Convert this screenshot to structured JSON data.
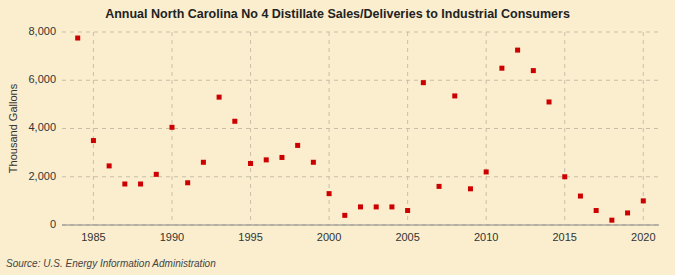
{
  "chart_data": {
    "type": "scatter",
    "title": "Annual North Carolina No 4 Distillate Sales/Deliveries to Industrial Consumers",
    "ylabel": "Thousand Gallons",
    "source": "Source: U.S. Energy Information Administration",
    "x": [
      1984,
      1985,
      1986,
      1987,
      1988,
      1989,
      1990,
      1991,
      1992,
      1993,
      1994,
      1995,
      1996,
      1997,
      1998,
      1999,
      2000,
      2001,
      2002,
      2003,
      2004,
      2005,
      2006,
      2007,
      2008,
      2009,
      2010,
      2011,
      2012,
      2013,
      2014,
      2015,
      2016,
      2017,
      2018,
      2019,
      2020
    ],
    "values": [
      7750,
      3500,
      2450,
      1700,
      1700,
      2100,
      4050,
      1750,
      2600,
      5300,
      4300,
      2550,
      2700,
      2800,
      3300,
      2600,
      1300,
      400,
      750,
      750,
      750,
      600,
      5900,
      1600,
      5350,
      1500,
      2200,
      6500,
      7250,
      6400,
      5100,
      2000,
      1200,
      600,
      200,
      500,
      1000
    ],
    "color": "#cc0000",
    "marker": "square",
    "xlim": [
      1983,
      2021
    ],
    "ylim": [
      0,
      8000
    ],
    "xticks": [
      1985,
      1990,
      1995,
      2000,
      2005,
      2010,
      2015,
      2020
    ],
    "yticks": [
      0,
      {
        "value": 2000,
        "label": "2,000"
      },
      {
        "value": 4000,
        "label": "4,000"
      },
      {
        "value": 6000,
        "label": "6,000"
      },
      {
        "value": 8000,
        "label": "8,000"
      }
    ],
    "grid": true
  }
}
